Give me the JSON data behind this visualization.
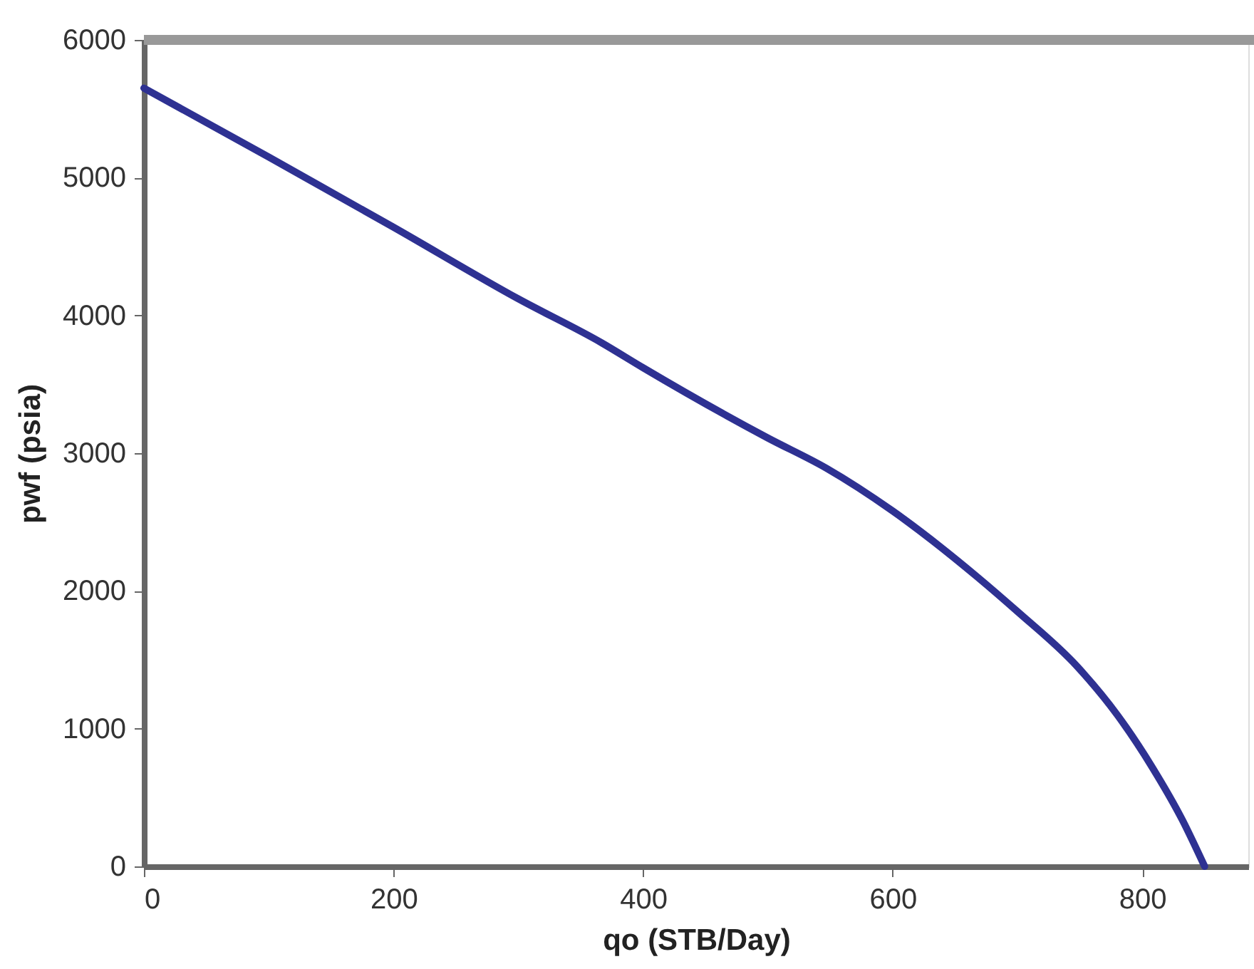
{
  "chart_data": {
    "type": "line",
    "xlabel": "qo (STB/Day)",
    "ylabel": "pwf (psia)",
    "x": [
      0,
      100,
      200,
      300,
      367,
      400,
      500,
      547,
      600,
      668,
      700,
      748,
      780,
      808,
      832,
      850
    ],
    "series": [
      {
        "color": "#2e3192",
        "values": [
          5650,
          5150,
          4640,
          4120,
          3800,
          3620,
          3110,
          2890,
          2580,
          2100,
          1850,
          1450,
          1100,
          720,
          340,
          0
        ]
      }
    ],
    "xlim": [
      0,
      885
    ],
    "xticks": [
      0,
      200,
      400,
      600,
      800
    ],
    "ylim": [
      0,
      6000
    ],
    "yticks": [
      0,
      1000,
      2000,
      3000,
      4000,
      5000,
      6000
    ],
    "grid": false,
    "legend": false,
    "marker": "none",
    "line_style": "solid"
  }
}
